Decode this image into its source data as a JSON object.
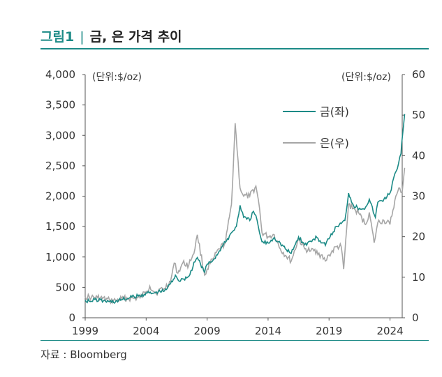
{
  "header": {
    "figure_label": "그림1",
    "separator": "|",
    "title": "금, 은 가격 추이"
  },
  "source": "자료 : Bloomberg",
  "colors": {
    "gold": "#1b8a86",
    "silver": "#a6a6a6",
    "accent": "#1b8a86",
    "axis": "#555555"
  },
  "chart_data": {
    "type": "line",
    "title": "금, 은 가격 추이",
    "left_unit": "(단위:$/oz)",
    "right_unit": "(단위:$/oz)",
    "x_ticks": [
      "1999",
      "2004",
      "2009",
      "2014",
      "2019",
      "2024"
    ],
    "x_range": [
      1999,
      2025
    ],
    "y_left": {
      "range": [
        0,
        4000
      ],
      "ticks": [
        "0",
        "500",
        "1,000",
        "1,500",
        "2,000",
        "2,500",
        "3,000",
        "3,500",
        "4,000"
      ]
    },
    "y_right": {
      "range": [
        0,
        60
      ],
      "ticks": [
        "0",
        "10",
        "20",
        "30",
        "40",
        "50",
        "60"
      ]
    },
    "legend_position": "top-right",
    "grid": false,
    "series": [
      {
        "name": "금(좌)",
        "axis": "left",
        "x": [
          1999.0,
          1999.5,
          1999.8,
          2000.5,
          2001.0,
          2001.5,
          2002.0,
          2002.5,
          2003.0,
          2003.5,
          2004.0,
          2004.5,
          2005.0,
          2005.5,
          2006.0,
          2006.4,
          2006.8,
          2007.0,
          2007.5,
          2008.0,
          2008.2,
          2008.8,
          2009.0,
          2009.5,
          2010.0,
          2010.5,
          2011.0,
          2011.4,
          2011.7,
          2012.0,
          2012.5,
          2012.8,
          2013.0,
          2013.3,
          2013.5,
          2014.0,
          2014.5,
          2015.0,
          2015.5,
          2015.9,
          2016.5,
          2017.0,
          2017.5,
          2018.0,
          2018.7,
          2019.0,
          2019.6,
          2020.0,
          2020.3,
          2020.6,
          2021.0,
          2021.5,
          2022.0,
          2022.3,
          2022.8,
          2023.0,
          2023.5,
          2024.0,
          2024.3,
          2024.6,
          2024.9,
          2025.0,
          2025.2
        ],
        "values": [
          290,
          270,
          300,
          280,
          265,
          270,
          300,
          315,
          350,
          360,
          410,
          400,
          430,
          440,
          560,
          700,
          600,
          640,
          680,
          920,
          990,
          750,
          880,
          950,
          1100,
          1240,
          1400,
          1500,
          1850,
          1650,
          1600,
          1750,
          1680,
          1400,
          1250,
          1230,
          1320,
          1230,
          1120,
          1060,
          1330,
          1200,
          1260,
          1320,
          1190,
          1300,
          1500,
          1550,
          1600,
          2050,
          1850,
          1800,
          1820,
          1950,
          1650,
          1900,
          1950,
          2050,
          2300,
          2450,
          2700,
          2950,
          3350
        ]
      },
      {
        "name": "은(우)",
        "axis": "left_scaled_from_right",
        "x": [
          1999.0,
          1999.5,
          2000.0,
          2001.0,
          2001.5,
          2002.0,
          2003.0,
          2003.5,
          2004.0,
          2004.3,
          2004.8,
          2005.0,
          2005.5,
          2006.0,
          2006.3,
          2006.6,
          2007.0,
          2007.5,
          2008.0,
          2008.2,
          2008.8,
          2009.0,
          2009.5,
          2010.0,
          2010.5,
          2011.0,
          2011.3,
          2011.7,
          2012.0,
          2012.5,
          2013.0,
          2013.3,
          2013.5,
          2014.0,
          2014.5,
          2015.0,
          2015.5,
          2015.9,
          2016.5,
          2017.0,
          2017.5,
          2018.0,
          2018.7,
          2019.0,
          2019.6,
          2020.0,
          2020.2,
          2020.6,
          2021.0,
          2021.5,
          2022.0,
          2022.3,
          2022.7,
          2023.0,
          2023.5,
          2024.0,
          2024.4,
          2024.8,
          2025.0,
          2025.2
        ],
        "values": [
          5.2,
          5.0,
          5.0,
          4.3,
          4.2,
          4.7,
          4.8,
          4.9,
          6.5,
          7.8,
          6.0,
          6.7,
          7.2,
          9.0,
          13.5,
          11.0,
          13.5,
          13.0,
          17.0,
          20.5,
          10.5,
          12.0,
          14.5,
          17.0,
          18.5,
          28.0,
          48.0,
          32.0,
          30.0,
          30.0,
          32.5,
          27.0,
          21.0,
          20.0,
          20.5,
          17.0,
          15.2,
          14.0,
          19.5,
          17.0,
          16.5,
          16.5,
          14.0,
          15.5,
          17.5,
          17.5,
          12.0,
          28.0,
          27.0,
          25.5,
          23.0,
          26.0,
          18.5,
          23.5,
          24.0,
          23.0,
          29.0,
          32.0,
          31.0,
          37.0
        ]
      }
    ]
  }
}
